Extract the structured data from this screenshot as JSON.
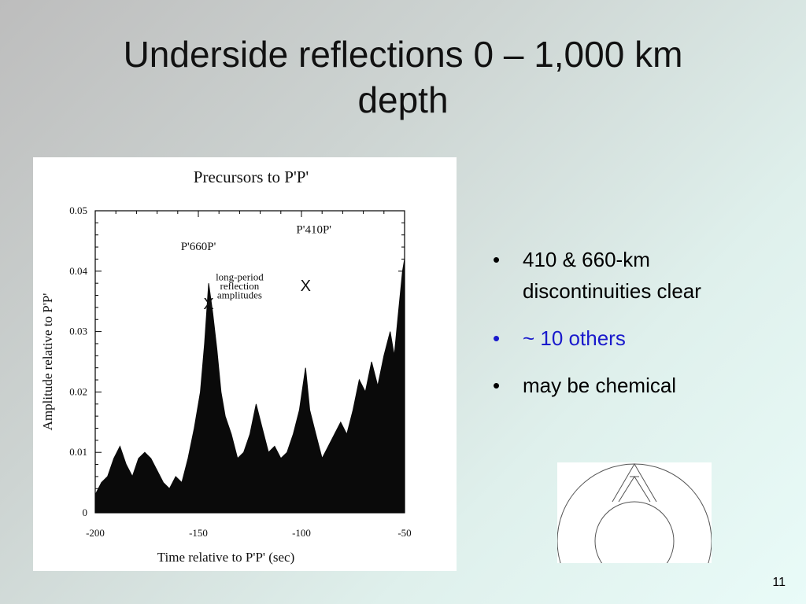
{
  "slide": {
    "title_line1": "Underside reflections 0 – 1,000 km",
    "title_line2": "depth",
    "page_number": "11"
  },
  "bullets": [
    {
      "text": "410 & 660-km discontinuities clear",
      "color": "#000000"
    },
    {
      "text": "~ 10 others",
      "color": "#1a1acc"
    },
    {
      "text": "may be chemical",
      "color": "#000000"
    }
  ],
  "chart_data": {
    "type": "area",
    "title": "Precursors to P'P'",
    "xlabel": "Time relative to P'P' (sec)",
    "ylabel": "Amplitude relative to P'P'",
    "xlim": [
      -200,
      -50
    ],
    "ylim": [
      0,
      0.05
    ],
    "x_ticks": [
      "-200",
      "-150",
      "-100",
      "-50"
    ],
    "y_ticks": [
      "0",
      "0.01",
      "0.02",
      "0.03",
      "0.04",
      "0.05"
    ],
    "annotations": [
      {
        "text": "P'660P'",
        "x": -150,
        "y": 0.0435
      },
      {
        "text": "P'410P'",
        "x": -94,
        "y": 0.0463
      },
      {
        "text": "long-period",
        "x": -130,
        "y": 0.0385
      },
      {
        "text": "reflection",
        "x": -130,
        "y": 0.037
      },
      {
        "text": "amplitudes",
        "x": -130,
        "y": 0.0355
      }
    ],
    "markers": [
      {
        "label": "X",
        "x": -145,
        "y": 0.0345
      },
      {
        "label": "X",
        "x": -98,
        "y": 0.0375
      }
    ],
    "series": [
      {
        "values": [
          [
            -200,
            0.003
          ],
          [
            -197,
            0.005
          ],
          [
            -194,
            0.006
          ],
          [
            -191,
            0.009
          ],
          [
            -188,
            0.011
          ],
          [
            -185,
            0.008
          ],
          [
            -182,
            0.006
          ],
          [
            -179,
            0.009
          ],
          [
            -176,
            0.01
          ],
          [
            -173,
            0.009
          ],
          [
            -170,
            0.007
          ],
          [
            -167,
            0.005
          ],
          [
            -164,
            0.004
          ],
          [
            -161,
            0.006
          ],
          [
            -158,
            0.005
          ],
          [
            -155,
            0.009
          ],
          [
            -152,
            0.014
          ],
          [
            -149,
            0.02
          ],
          [
            -147,
            0.028
          ],
          [
            -145,
            0.038
          ],
          [
            -143,
            0.033
          ],
          [
            -141,
            0.027
          ],
          [
            -139,
            0.02
          ],
          [
            -137,
            0.016
          ],
          [
            -134,
            0.013
          ],
          [
            -131,
            0.009
          ],
          [
            -128,
            0.01
          ],
          [
            -125,
            0.013
          ],
          [
            -122,
            0.018
          ],
          [
            -119,
            0.014
          ],
          [
            -116,
            0.01
          ],
          [
            -113,
            0.011
          ],
          [
            -110,
            0.009
          ],
          [
            -107,
            0.01
          ],
          [
            -104,
            0.013
          ],
          [
            -101,
            0.017
          ],
          [
            -98,
            0.024
          ],
          [
            -96,
            0.017
          ],
          [
            -93,
            0.013
          ],
          [
            -90,
            0.009
          ],
          [
            -87,
            0.011
          ],
          [
            -84,
            0.013
          ],
          [
            -81,
            0.015
          ],
          [
            -78,
            0.013
          ],
          [
            -75,
            0.017
          ],
          [
            -72,
            0.022
          ],
          [
            -69,
            0.02
          ],
          [
            -66,
            0.025
          ],
          [
            -63,
            0.021
          ],
          [
            -60,
            0.026
          ],
          [
            -57,
            0.03
          ],
          [
            -55,
            0.026
          ],
          [
            -53,
            0.033
          ],
          [
            -51,
            0.04
          ],
          [
            -50,
            0.042
          ]
        ]
      }
    ]
  }
}
